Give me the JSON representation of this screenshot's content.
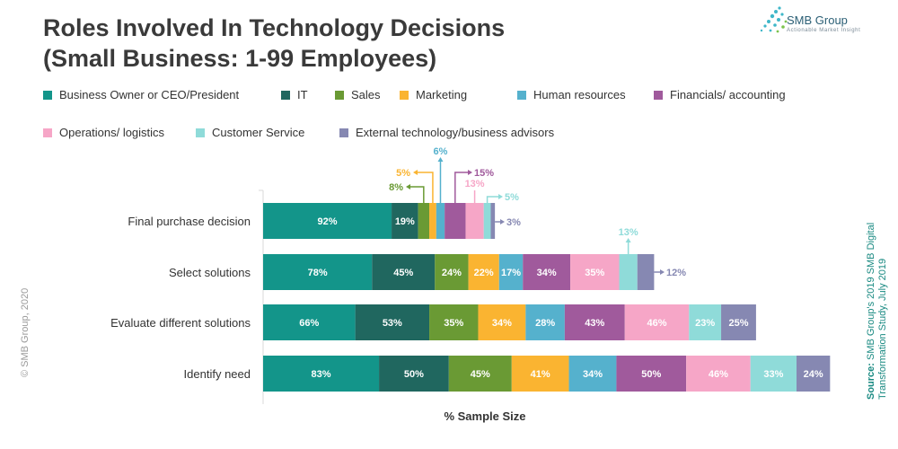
{
  "title": {
    "line1": "Roles Involved In Technology Decisions",
    "line2": "(Small Business: 1-99 Employees)"
  },
  "logo": {
    "name": "SMB Group",
    "tagline": "Actionable Market Insight",
    "icon": "dot-cluster-logo"
  },
  "copyright": "© SMB Group, 2020",
  "source": {
    "label": "Source:",
    "line1": " SMB Group's 2019 SMB Digital",
    "line2": "Transformation Study, July 2019"
  },
  "chart_data": {
    "type": "bar",
    "orientation": "horizontal",
    "stacked": true,
    "xlabel": "% Sample Size",
    "categories": [
      "Final purchase decision",
      "Select solutions",
      "Evaluate different solutions",
      "Identify need"
    ],
    "series": [
      {
        "name": "Business Owner or CEO/President",
        "color": "#13958a",
        "values": [
          92,
          78,
          66,
          83
        ]
      },
      {
        "name": "IT",
        "color": "#20675f",
        "values": [
          19,
          45,
          53,
          50
        ]
      },
      {
        "name": "Sales",
        "color": "#6a9a34",
        "values": [
          8,
          24,
          35,
          45
        ]
      },
      {
        "name": "Marketing",
        "color": "#fab431",
        "values": [
          5,
          22,
          34,
          41
        ]
      },
      {
        "name": "Human resources",
        "color": "#55b1cd",
        "values": [
          6,
          17,
          28,
          34
        ]
      },
      {
        "name": "Financials/ accounting",
        "color": "#a05a9c",
        "values": [
          15,
          34,
          43,
          50
        ]
      },
      {
        "name": "Operations/ logistics",
        "color": "#f6a6c7",
        "values": [
          13,
          35,
          46,
          46
        ]
      },
      {
        "name": "Customer Service",
        "color": "#8fdbd9",
        "values": [
          5,
          13,
          23,
          33
        ]
      },
      {
        "name": "External technology/business advisors",
        "color": "#8688b2",
        "values": [
          3,
          12,
          25,
          24
        ]
      }
    ],
    "legend_position": "top",
    "grid": false,
    "label_suffix": "%"
  }
}
